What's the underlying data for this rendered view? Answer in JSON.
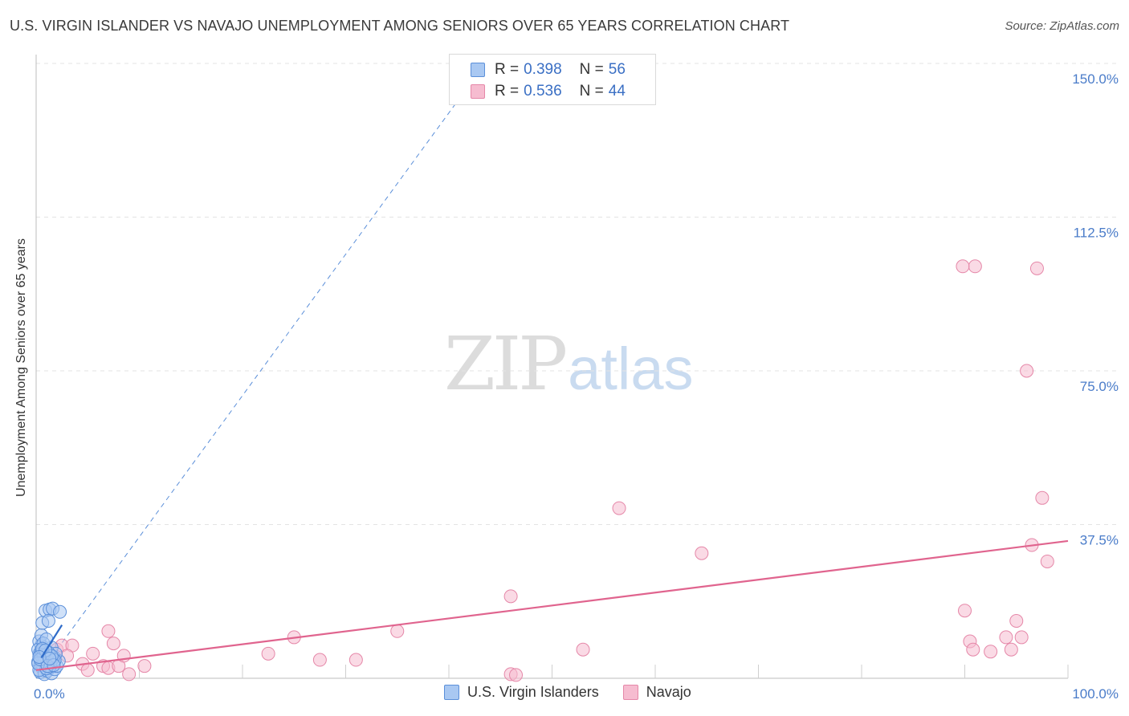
{
  "title": "U.S. VIRGIN ISLANDER VS NAVAJO UNEMPLOYMENT AMONG SENIORS OVER 65 YEARS CORRELATION CHART",
  "source": "Source: ZipAtlas.com",
  "watermark": {
    "zip": "ZIP",
    "atlas": "atlas"
  },
  "legend": {
    "rows": [
      {
        "r_label": "R =",
        "r_value": "0.398",
        "n_label": "N =",
        "n_value": "56"
      },
      {
        "r_label": "R =",
        "r_value": "0.536",
        "n_label": "N =",
        "n_value": "44"
      }
    ]
  },
  "bottom_legend": {
    "series1": "U.S. Virgin Islanders",
    "series2": "Navajo"
  },
  "colors": {
    "series1_fill": "#a9c8f2",
    "series1_stroke": "#5b8fd9",
    "series1_line": "#2f6bc9",
    "series2_fill": "#f6bcd0",
    "series2_stroke": "#e587a8",
    "series2_line": "#e0648e",
    "tick": "#4a7cc9",
    "grid": "#e3e3e3"
  },
  "chart_data": {
    "type": "scatter",
    "title": "U.S. VIRGIN ISLANDER VS NAVAJO UNEMPLOYMENT AMONG SENIORS OVER 65 YEARS CORRELATION CHART",
    "xlabel": "",
    "ylabel": "Unemployment Among Seniors over 65 years",
    "xlim": [
      0,
      100
    ],
    "ylim": [
      0,
      150
    ],
    "x_ticks": [
      "0.0%",
      "100.0%"
    ],
    "y_ticks": [
      {
        "value": 37.5,
        "label": "37.5%"
      },
      {
        "value": 75,
        "label": "75.0%"
      },
      {
        "value": 112.5,
        "label": "112.5%"
      },
      {
        "value": 150,
        "label": "150.0%"
      }
    ],
    "series": [
      {
        "name": "U.S. Virgin Islanders",
        "R": 0.398,
        "N": 56,
        "points": [
          [
            0.2,
            4.0
          ],
          [
            0.3,
            6.0
          ],
          [
            0.4,
            3.0
          ],
          [
            0.5,
            8.0
          ],
          [
            0.6,
            5.0
          ],
          [
            0.7,
            2.0
          ],
          [
            0.8,
            7.0
          ],
          [
            0.9,
            4.5
          ],
          [
            1.0,
            3.5
          ],
          [
            1.1,
            6.5
          ],
          [
            1.2,
            5.5
          ],
          [
            1.3,
            2.5
          ],
          [
            1.4,
            4.0
          ],
          [
            1.5,
            7.5
          ],
          [
            0.3,
            9.0
          ],
          [
            0.5,
            10.5
          ],
          [
            0.6,
            13.5
          ],
          [
            0.9,
            16.5
          ],
          [
            1.3,
            16.8
          ],
          [
            1.6,
            17.0
          ],
          [
            2.3,
            16.2
          ],
          [
            1.2,
            14.0
          ],
          [
            0.4,
            1.5
          ],
          [
            0.8,
            1.0
          ],
          [
            1.1,
            1.8
          ],
          [
            1.5,
            1.2
          ],
          [
            1.8,
            2.2
          ],
          [
            2.0,
            3.0
          ],
          [
            2.2,
            4.2
          ],
          [
            1.7,
            5.2
          ],
          [
            1.9,
            6.0
          ],
          [
            0.2,
            7.0
          ],
          [
            0.7,
            8.5
          ],
          [
            1.0,
            9.5
          ],
          [
            0.4,
            5.8
          ],
          [
            0.6,
            3.2
          ],
          [
            1.3,
            2.8
          ],
          [
            0.9,
            5.0
          ],
          [
            1.6,
            4.8
          ],
          [
            0.3,
            2.0
          ],
          [
            0.5,
            6.8
          ],
          [
            1.4,
            3.8
          ],
          [
            0.8,
            4.2
          ],
          [
            1.2,
            6.2
          ],
          [
            0.7,
            5.6
          ],
          [
            1.0,
            2.4
          ],
          [
            0.2,
            3.6
          ],
          [
            1.8,
            4.4
          ],
          [
            0.6,
            7.2
          ],
          [
            1.5,
            5.4
          ],
          [
            0.4,
            4.6
          ],
          [
            1.1,
            3.0
          ],
          [
            0.9,
            6.8
          ],
          [
            1.7,
            3.2
          ],
          [
            0.3,
            5.2
          ],
          [
            1.3,
            4.8
          ]
        ],
        "trend_solid": {
          "x": [
            0.5,
            2.5
          ],
          "y": [
            5.0,
            13.0
          ]
        },
        "trend_dashed": {
          "x": [
            0,
            43.5
          ],
          "y": [
            0,
            150
          ]
        }
      },
      {
        "name": "Navajo",
        "R": 0.536,
        "N": 44,
        "points": [
          [
            0.8,
            6.0
          ],
          [
            1.2,
            5.0
          ],
          [
            1.5,
            4.5
          ],
          [
            2.0,
            7.0
          ],
          [
            2.5,
            8.0
          ],
          [
            3.5,
            8.0
          ],
          [
            3.0,
            5.5
          ],
          [
            4.5,
            3.5
          ],
          [
            5.0,
            2.0
          ],
          [
            5.5,
            6.0
          ],
          [
            6.5,
            3.0
          ],
          [
            7.0,
            2.5
          ],
          [
            7.0,
            11.5
          ],
          [
            7.5,
            8.5
          ],
          [
            8.0,
            3.0
          ],
          [
            8.5,
            5.5
          ],
          [
            9.0,
            1.0
          ],
          [
            10.5,
            3.0
          ],
          [
            22.5,
            6.0
          ],
          [
            25.0,
            10.0
          ],
          [
            27.5,
            4.5
          ],
          [
            31.0,
            4.5
          ],
          [
            35.0,
            11.5
          ],
          [
            46.0,
            1.0
          ],
          [
            46.5,
            0.8
          ],
          [
            46.0,
            20.0
          ],
          [
            53.0,
            7.0
          ],
          [
            56.5,
            41.5
          ],
          [
            64.5,
            30.5
          ],
          [
            90.0,
            16.5
          ],
          [
            90.5,
            9.0
          ],
          [
            90.8,
            7.0
          ],
          [
            92.5,
            6.5
          ],
          [
            94.0,
            10.0
          ],
          [
            94.5,
            7.0
          ],
          [
            95.0,
            14.0
          ],
          [
            95.5,
            10.0
          ],
          [
            96.5,
            32.5
          ],
          [
            97.5,
            44.0
          ],
          [
            98.0,
            28.5
          ],
          [
            91.0,
            100.5
          ],
          [
            97.0,
            100.0
          ],
          [
            96.0,
            75.0
          ],
          [
            89.8,
            100.5
          ]
        ],
        "trend": {
          "x": [
            0,
            100
          ],
          "y": [
            2.0,
            33.5
          ]
        }
      }
    ]
  }
}
